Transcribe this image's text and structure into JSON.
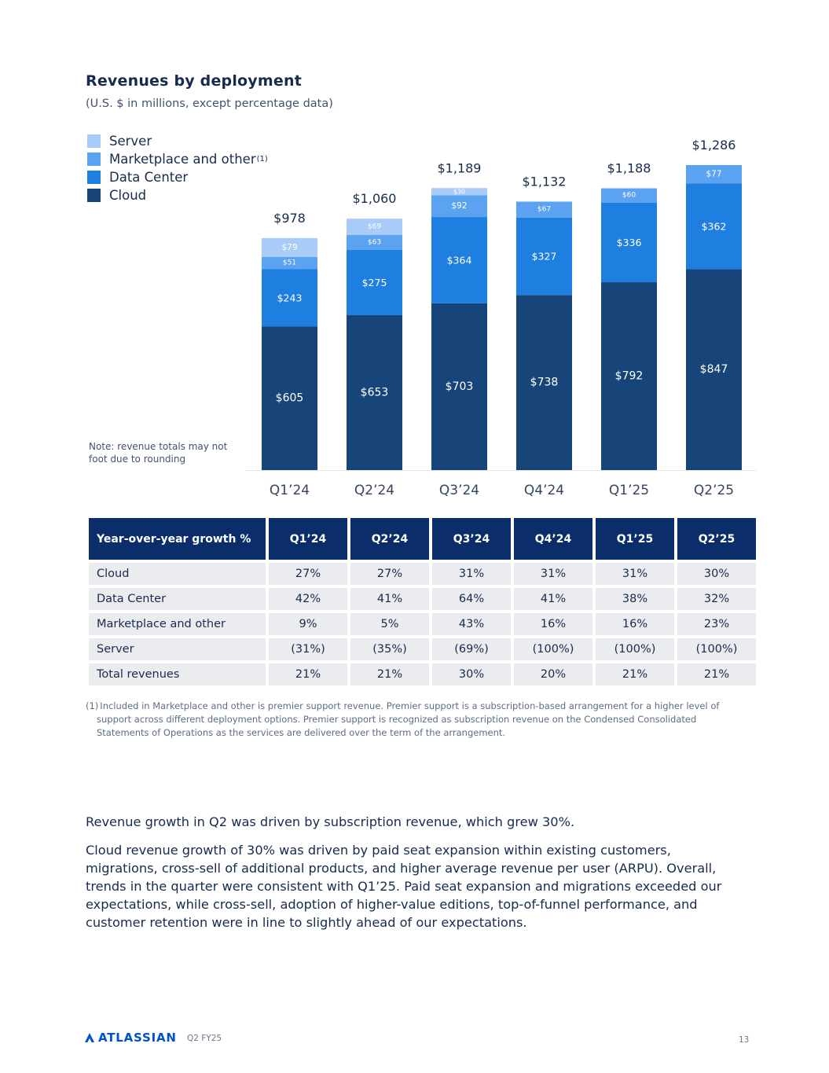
{
  "title": "Revenues by deployment",
  "subtitle": "(U.S. $ in millions, except percentage data)",
  "legend": [
    {
      "label": "Server",
      "color": "#a8cbf7",
      "sup": ""
    },
    {
      "label": "Marketplace and other",
      "color": "#5ba3f0",
      "sup": "(1)"
    },
    {
      "label": "Data Center",
      "color": "#1f7fe0",
      "sup": ""
    },
    {
      "label": "Cloud",
      "color": "#17457a",
      "sup": ""
    }
  ],
  "note": "Note: revenue totals may not foot due to rounding",
  "chart_data": {
    "type": "bar",
    "stacked": true,
    "title": "Revenues by deployment",
    "unit": "$M",
    "categories": [
      "Q1’24",
      "Q2’24",
      "Q3’24",
      "Q4’24",
      "Q1’25",
      "Q2’25"
    ],
    "series": [
      {
        "name": "Cloud",
        "color": "#17457a",
        "values": [
          605,
          653,
          703,
          738,
          792,
          847
        ],
        "labels": [
          "$605",
          "$653",
          "$703",
          "$738",
          "$792",
          "$847"
        ]
      },
      {
        "name": "Data Center",
        "color": "#1f7fe0",
        "values": [
          243,
          275,
          364,
          327,
          336,
          362
        ],
        "labels": [
          "$243",
          "$275",
          "$364",
          "$327",
          "$336",
          "$362"
        ]
      },
      {
        "name": "Marketplace and other",
        "color": "#5ba3f0",
        "values": [
          51,
          63,
          92,
          67,
          60,
          77
        ],
        "labels": [
          "$51",
          "$63",
          "$92",
          "$67",
          "$60",
          "$77"
        ]
      },
      {
        "name": "Server",
        "color": "#a8cbf7",
        "values": [
          79,
          69,
          30,
          0,
          0,
          0
        ],
        "labels": [
          "$79",
          "$69",
          "$30",
          "",
          "",
          ""
        ]
      }
    ],
    "totals": [
      978,
      1060,
      1189,
      1132,
      1188,
      1286
    ],
    "total_labels": [
      "$978",
      "$1,060",
      "$1,189",
      "$1,132",
      "$1,188",
      "$1,286"
    ],
    "ylim": [
      0,
      1286
    ],
    "grid": false
  },
  "growth_table": {
    "header": "Year-over-year growth %",
    "columns": [
      "Q1’24",
      "Q2’24",
      "Q3’24",
      "Q4’24",
      "Q1’25",
      "Q2’25"
    ],
    "rows": [
      {
        "label": "Cloud",
        "values": [
          "27%",
          "27%",
          "31%",
          "31%",
          "31%",
          "30%"
        ]
      },
      {
        "label": "Data Center",
        "values": [
          "42%",
          "41%",
          "64%",
          "41%",
          "38%",
          "32%"
        ]
      },
      {
        "label": "Marketplace and other",
        "values": [
          "9%",
          "5%",
          "43%",
          "16%",
          "16%",
          "23%"
        ]
      },
      {
        "label": "Server",
        "values": [
          "(31%)",
          "(35%)",
          "(69%)",
          "(100%)",
          "(100%)",
          "(100%)"
        ]
      },
      {
        "label": "Total revenues",
        "values": [
          "21%",
          "21%",
          "30%",
          "20%",
          "21%",
          "21%"
        ]
      }
    ]
  },
  "footnote": {
    "marker": "(1)",
    "text": "Included in Marketplace and other is premier support revenue. Premier support is a subscription-based arrangement for a higher level of support across different deployment options. Premier support is recognized as subscription revenue on the Condensed Consolidated Statements of Operations as the services are delivered over the term of the arrangement."
  },
  "paragraphs": [
    "Revenue growth in Q2 was driven by subscription revenue, which grew 30%.",
    "Cloud revenue growth of 30% was driven by paid seat expansion within existing customers, migrations, cross-sell of additional products, and higher average revenue per user (ARPU). Overall, trends in the quarter were consistent with Q1’25. Paid seat expansion and migrations exceeded our expectations, while cross-sell, adoption of higher-value editions, top-of-funnel performance, and customer retention were in line to slightly ahead of our expectations."
  ],
  "footer": {
    "logo": "ATLASSIAN",
    "label": "Q2 FY25",
    "page": "13",
    "brand_color": "#0052cc"
  }
}
